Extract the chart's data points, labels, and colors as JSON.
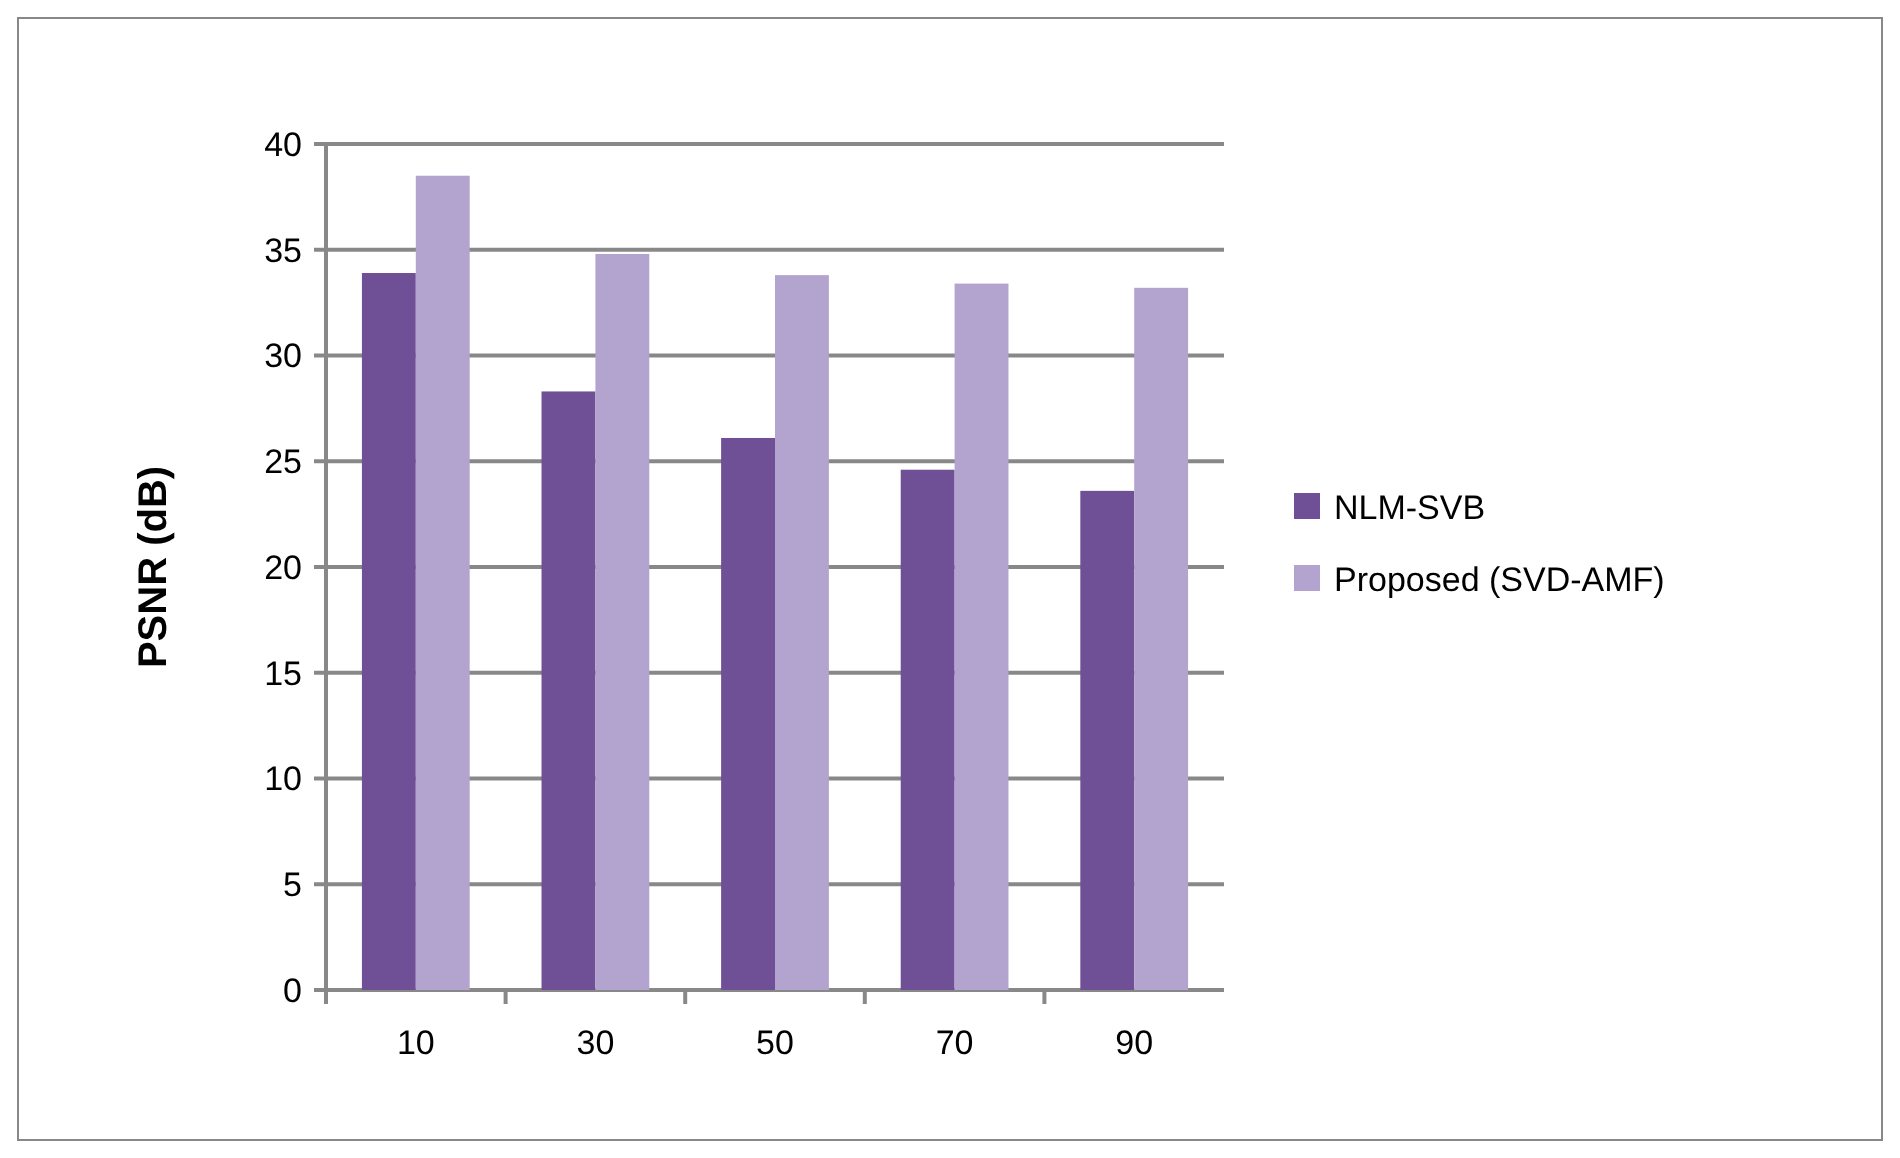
{
  "chart_data": {
    "type": "bar",
    "ylabel": "PSNR (dB)",
    "categories": [
      "10",
      "30",
      "50",
      "70",
      "90"
    ],
    "series": [
      {
        "name": "NLM-SVB",
        "color": "#6f4f95",
        "values": [
          33.9,
          28.3,
          26.1,
          24.6,
          23.6
        ]
      },
      {
        "name": "Proposed (SVD-AMF)",
        "color": "#b3a3cf",
        "values": [
          38.5,
          34.8,
          33.8,
          33.4,
          33.2
        ]
      }
    ],
    "ylim": [
      0,
      40
    ],
    "yticks": [
      0,
      5,
      10,
      15,
      20,
      25,
      30,
      35,
      40
    ],
    "grid": "y",
    "legend": "right"
  }
}
